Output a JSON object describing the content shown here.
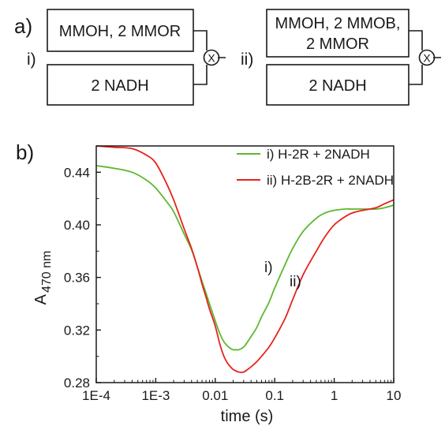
{
  "panel_a": {
    "label": "a)",
    "schemes": [
      {
        "label": "i)",
        "top_box": [
          "MMOH, 2 MMOR"
        ],
        "bottom_box": [
          "2 NADH"
        ],
        "mixer": "X"
      },
      {
        "label": "ii)",
        "top_box": [
          "MMOH, 2 MMOB,",
          "2 MMOR"
        ],
        "bottom_box": [
          "2 NADH"
        ],
        "mixer": "X"
      }
    ]
  },
  "chart_data": {
    "type": "line",
    "panel_label": "b)",
    "xlabel": "time (s)",
    "ylabel": "A",
    "ylabel_subscript": "470 nm",
    "x_scale": "log",
    "xlim": [
      0.0001,
      10
    ],
    "ylim": [
      0.28,
      0.46
    ],
    "x_ticks": [
      0.0001,
      0.001,
      0.01,
      0.1,
      1,
      10
    ],
    "x_tick_labels": [
      "1E-4",
      "1E-3",
      "0.01",
      "0.1",
      "1",
      "10"
    ],
    "y_ticks": [
      0.28,
      0.32,
      0.36,
      0.4,
      0.44
    ],
    "y_tick_labels": [
      "0.28",
      "0.32",
      "0.36",
      "0.40",
      "0.44"
    ],
    "grid": false,
    "legend_position": "top-right",
    "series": [
      {
        "name": "i) H-2R + 2NADH",
        "color": "#5bb82f",
        "annotation": "i)",
        "x": [
          0.0001,
          0.0002,
          0.0004,
          0.0007,
          0.001,
          0.0015,
          0.002,
          0.003,
          0.004,
          0.005,
          0.006,
          0.007,
          0.008,
          0.01,
          0.012,
          0.014,
          0.016,
          0.018,
          0.02,
          0.022,
          0.025,
          0.03,
          0.035,
          0.04,
          0.05,
          0.06,
          0.08,
          0.1,
          0.15,
          0.2,
          0.3,
          0.5,
          0.7,
          1,
          1.5,
          2,
          3,
          5,
          7,
          10
        ],
        "y": [
          0.445,
          0.443,
          0.44,
          0.434,
          0.428,
          0.418,
          0.41,
          0.393,
          0.381,
          0.368,
          0.357,
          0.348,
          0.34,
          0.327,
          0.317,
          0.311,
          0.308,
          0.306,
          0.305,
          0.305,
          0.305,
          0.307,
          0.311,
          0.315,
          0.322,
          0.33,
          0.341,
          0.352,
          0.37,
          0.382,
          0.395,
          0.405,
          0.409,
          0.411,
          0.412,
          0.412,
          0.412,
          0.412,
          0.413,
          0.415
        ]
      },
      {
        "name": "ii) H-2B-2R + 2NADH",
        "color": "#e8221b",
        "annotation": "ii)",
        "x": [
          0.0001,
          0.0002,
          0.0004,
          0.0007,
          0.001,
          0.0015,
          0.002,
          0.003,
          0.004,
          0.005,
          0.006,
          0.007,
          0.008,
          0.01,
          0.012,
          0.014,
          0.016,
          0.018,
          0.02,
          0.022,
          0.025,
          0.03,
          0.035,
          0.04,
          0.05,
          0.06,
          0.08,
          0.1,
          0.15,
          0.2,
          0.3,
          0.5,
          0.7,
          1,
          1.5,
          2,
          3,
          5,
          7,
          10
        ],
        "y": [
          0.46,
          0.459,
          0.458,
          0.453,
          0.447,
          0.432,
          0.419,
          0.397,
          0.382,
          0.368,
          0.355,
          0.345,
          0.336,
          0.323,
          0.309,
          0.3,
          0.295,
          0.292,
          0.29,
          0.289,
          0.288,
          0.288,
          0.29,
          0.292,
          0.296,
          0.3,
          0.307,
          0.314,
          0.329,
          0.343,
          0.362,
          0.38,
          0.391,
          0.4,
          0.406,
          0.409,
          0.411,
          0.413,
          0.416,
          0.419
        ]
      }
    ]
  }
}
